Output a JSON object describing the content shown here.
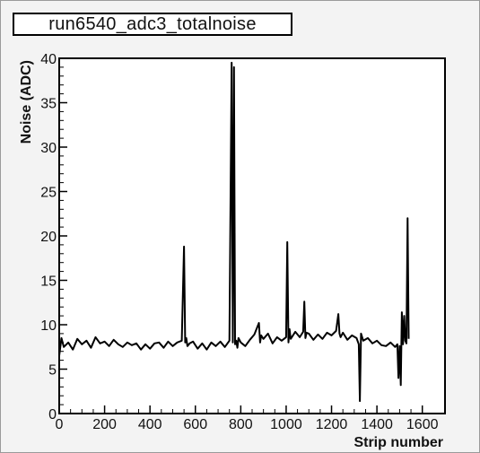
{
  "chart_data": {
    "type": "line",
    "title": "run6540_adc3_totalnoise",
    "xlabel": "Strip number",
    "ylabel": "Noise (ADC)",
    "xlim": [
      0,
      1700
    ],
    "ylim": [
      0,
      40
    ],
    "xticks": [
      0,
      200,
      400,
      600,
      800,
      1000,
      1200,
      1400,
      1600
    ],
    "yticks": [
      0,
      5,
      10,
      15,
      20,
      25,
      30,
      35,
      40
    ],
    "grid": false,
    "series": [
      {
        "color": "#000000",
        "x": [
          0,
          10,
          20,
          40,
          60,
          80,
          100,
          120,
          140,
          160,
          180,
          200,
          220,
          240,
          260,
          280,
          300,
          320,
          340,
          360,
          380,
          400,
          420,
          440,
          460,
          480,
          500,
          520,
          540,
          550,
          555,
          560,
          565,
          575,
          590,
          610,
          630,
          650,
          670,
          690,
          710,
          730,
          750,
          760,
          765,
          770,
          775,
          780,
          785,
          790,
          800,
          820,
          840,
          860,
          880,
          885,
          890,
          900,
          920,
          940,
          960,
          980,
          1000,
          1005,
          1010,
          1015,
          1020,
          1040,
          1060,
          1075,
          1080,
          1085,
          1090,
          1100,
          1120,
          1140,
          1160,
          1180,
          1200,
          1220,
          1230,
          1235,
          1240,
          1250,
          1270,
          1290,
          1310,
          1320,
          1325,
          1330,
          1340,
          1360,
          1380,
          1400,
          1420,
          1440,
          1460,
          1480,
          1490,
          1495,
          1500,
          1505,
          1510,
          1515,
          1520,
          1525,
          1530,
          1535,
          1540
        ],
        "y": [
          6.5,
          8.5,
          7.5,
          8.0,
          7.2,
          8.4,
          7.8,
          8.2,
          7.4,
          8.6,
          7.9,
          8.1,
          7.6,
          8.3,
          7.8,
          7.5,
          8.0,
          7.7,
          7.9,
          7.2,
          7.8,
          7.3,
          7.9,
          8.0,
          7.4,
          8.1,
          7.6,
          8.0,
          8.2,
          18.8,
          8.0,
          8.5,
          7.6,
          7.9,
          8.1,
          7.3,
          7.9,
          7.2,
          8.0,
          7.6,
          8.1,
          7.5,
          8.2,
          39.5,
          8.0,
          39.0,
          7.8,
          8.2,
          7.4,
          8.5,
          8.0,
          7.6,
          8.3,
          8.9,
          10.2,
          8.0,
          8.8,
          8.4,
          9.0,
          7.9,
          8.6,
          8.2,
          8.6,
          19.3,
          8.0,
          9.5,
          8.4,
          9.2,
          8.6,
          9.2,
          12.6,
          8.5,
          9.1,
          9.0,
          8.3,
          8.9,
          8.4,
          9.1,
          8.8,
          9.3,
          11.2,
          9.0,
          8.6,
          9.1,
          8.3,
          8.8,
          8.5,
          7.8,
          1.4,
          9.0,
          8.2,
          8.5,
          7.9,
          8.2,
          7.7,
          7.6,
          8.0,
          7.5,
          7.8,
          4.0,
          7.6,
          3.2,
          11.4,
          7.8,
          11.0,
          8.2,
          7.9,
          22.0,
          8.4
        ]
      }
    ]
  }
}
